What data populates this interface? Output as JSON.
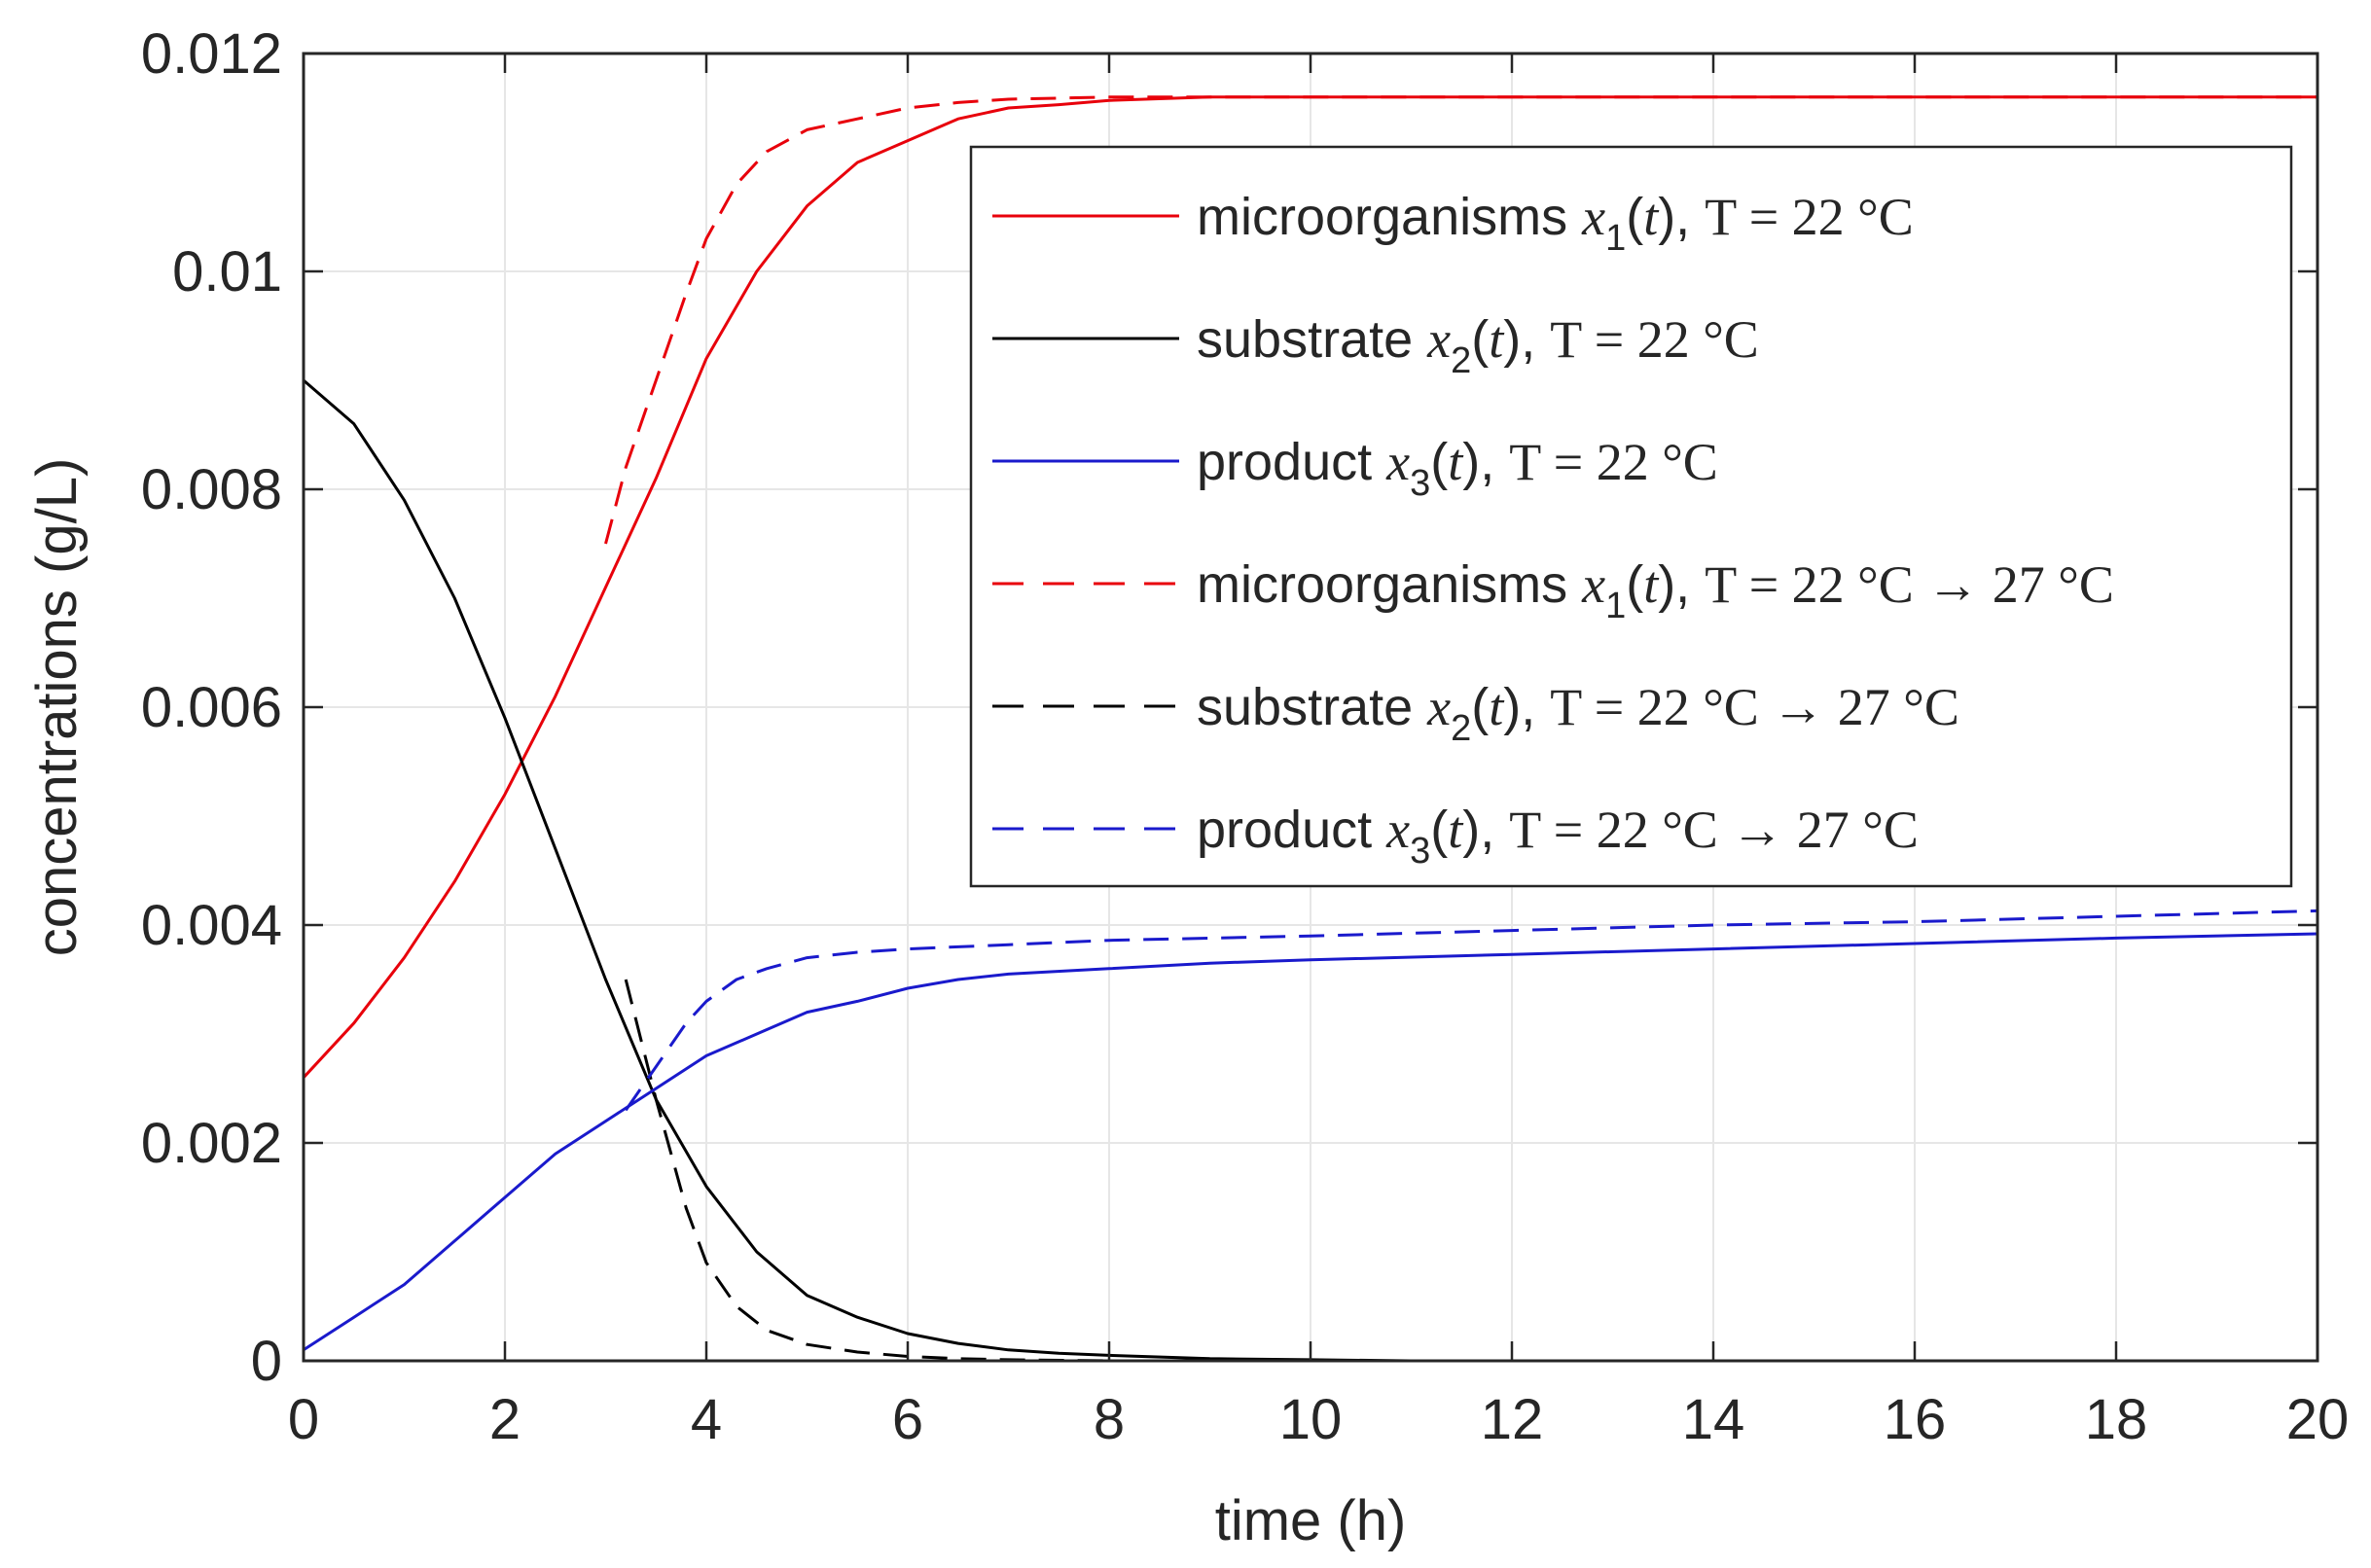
{
  "chart_data": {
    "type": "line",
    "title": "",
    "xlabel": "time (h)",
    "ylabel": "concentrations (g/L)",
    "xlim": [
      0,
      20
    ],
    "ylim": [
      0,
      0.012
    ],
    "xticks": [
      0,
      2,
      4,
      6,
      8,
      10,
      12,
      14,
      16,
      18,
      20
    ],
    "yticks": [
      0,
      0.002,
      0.004,
      0.006,
      0.008,
      0.01,
      0.012
    ],
    "xtick_labels": [
      "0",
      "2",
      "4",
      "6",
      "8",
      "10",
      "12",
      "14",
      "16",
      "18",
      "20"
    ],
    "ytick_labels": [
      "0",
      "0.002",
      "0.004",
      "0.006",
      "0.008",
      "0.01",
      "0.012"
    ],
    "grid": true,
    "legend_position": "top-right",
    "series": [
      {
        "id": "x1-22",
        "name": "microorganisms x1(t), T = 22 °C",
        "legend": {
          "lead": "microorganisms",
          "var": "x",
          "sub": "1",
          "arg": "t",
          "temp": "T =  22 °C"
        },
        "color": "#e8000b",
        "dash": "solid",
        "x": [
          0,
          0.5,
          1,
          1.5,
          2,
          2.5,
          3,
          3.5,
          4,
          4.5,
          5,
          5.5,
          6,
          6.5,
          7,
          7.5,
          8,
          9,
          10,
          12,
          14,
          16,
          18,
          20
        ],
        "y": [
          0.0026,
          0.0031,
          0.0037,
          0.0044,
          0.0052,
          0.0061,
          0.0071,
          0.0081,
          0.0092,
          0.01,
          0.0106,
          0.011,
          0.0112,
          0.0114,
          0.0115,
          0.01153,
          0.01157,
          0.0116,
          0.0116,
          0.0116,
          0.0116,
          0.0116,
          0.0116,
          0.0116
        ]
      },
      {
        "id": "x2-22",
        "name": "substrate x2(t), T = 22 °C",
        "legend": {
          "lead": "substrate",
          "var": "x",
          "sub": "2",
          "arg": "t",
          "temp": "T =  22 °C"
        },
        "color": "#000000",
        "dash": "solid",
        "x": [
          0,
          0.5,
          1,
          1.5,
          2,
          2.5,
          3,
          3.5,
          4,
          4.5,
          5,
          5.5,
          6,
          6.5,
          7,
          7.5,
          8,
          9,
          10,
          11,
          12,
          14,
          16,
          18,
          20
        ],
        "y": [
          0.009,
          0.0086,
          0.0079,
          0.007,
          0.0059,
          0.0047,
          0.0035,
          0.0024,
          0.0016,
          0.001,
          0.0006,
          0.0004,
          0.00025,
          0.00016,
          0.0001,
          7e-05,
          5e-05,
          2e-05,
          1e-05,
          0,
          0,
          0,
          0,
          0,
          0
        ]
      },
      {
        "id": "x3-22",
        "name": "product x3(t), T = 22 °C",
        "legend": {
          "lead": "product",
          "var": "x",
          "sub": "3",
          "arg": "t",
          "temp": "T =  22 °C"
        },
        "color": "#1a1acc",
        "dash": "solid",
        "x": [
          0,
          0.5,
          1,
          1.5,
          2,
          2.5,
          3,
          3.5,
          4,
          4.5,
          5,
          5.5,
          6,
          6.5,
          7,
          8,
          9,
          10,
          12,
          14,
          16,
          18,
          20
        ],
        "y": [
          0.0001,
          0.0004,
          0.0007,
          0.0011,
          0.0015,
          0.0019,
          0.0022,
          0.0025,
          0.0028,
          0.003,
          0.0032,
          0.0033,
          0.00342,
          0.0035,
          0.00355,
          0.0036,
          0.00365,
          0.00368,
          0.00373,
          0.00378,
          0.00383,
          0.00388,
          0.00392
        ]
      },
      {
        "id": "x1-27",
        "name": "microorganisms x1(t), T = 22 °C → 27 °C",
        "legend": {
          "lead": "microorganisms",
          "var": "x",
          "sub": "1",
          "arg": "t",
          "temp": "T = 22 °C → 27  °C"
        },
        "color": "#e8000b",
        "dash": "dashed",
        "x": [
          3,
          3.2,
          3.5,
          3.8,
          4,
          4.3,
          4.6,
          5,
          5.5,
          6,
          6.5,
          7,
          8,
          10,
          12,
          14,
          16,
          18,
          20
        ],
        "y": [
          0.0075,
          0.0082,
          0.009,
          0.0098,
          0.0103,
          0.0108,
          0.0111,
          0.0113,
          0.0114,
          0.0115,
          0.01155,
          0.01158,
          0.0116,
          0.0116,
          0.0116,
          0.0116,
          0.0116,
          0.0116,
          0.0116
        ]
      },
      {
        "id": "x2-27",
        "name": "substrate x2(t), T = 22 °C → 27 °C",
        "legend": {
          "lead": "substrate",
          "var": "x",
          "sub": "2",
          "arg": "t",
          "temp": "T = 22 °C → 27  °C"
        },
        "color": "#000000",
        "dash": "dashed",
        "x": [
          3.2,
          3.5,
          3.8,
          4,
          4.3,
          4.6,
          5,
          5.5,
          6,
          6.5,
          7,
          8,
          10,
          12,
          14,
          16,
          18,
          20
        ],
        "y": [
          0.0035,
          0.0024,
          0.0014,
          0.0009,
          0.0005,
          0.00028,
          0.00015,
          8e-05,
          4e-05,
          2e-05,
          1e-05,
          0,
          0,
          0,
          0,
          0,
          0,
          0
        ]
      },
      {
        "id": "x3-27",
        "name": "product x3(t), T = 22 °C → 27 °C",
        "legend": {
          "lead": "product",
          "var": "x",
          "sub": "3",
          "arg": "t",
          "temp": "T = 22 °C → 27  °C"
        },
        "color": "#1a1acc",
        "dash": "dashed",
        "x": [
          3.2,
          3.5,
          3.8,
          4,
          4.3,
          4.6,
          5,
          5.5,
          6,
          6.5,
          7,
          8,
          10,
          12,
          14,
          16,
          18,
          20
        ],
        "y": [
          0.0023,
          0.0027,
          0.0031,
          0.0033,
          0.0035,
          0.0036,
          0.0037,
          0.00375,
          0.00378,
          0.0038,
          0.00382,
          0.00386,
          0.0039,
          0.00395,
          0.004,
          0.00403,
          0.00408,
          0.00413
        ]
      }
    ]
  }
}
